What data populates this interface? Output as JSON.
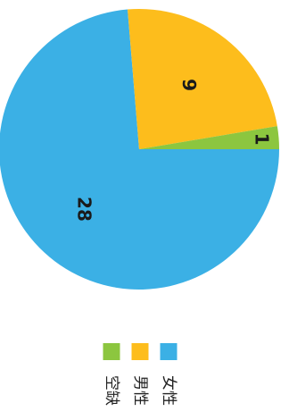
{
  "chart_data": {
    "type": "pie",
    "slices": [
      {
        "label": "女性",
        "value": 28,
        "color": "#3bb0e5"
      },
      {
        "label": "男性",
        "value": 9,
        "color": "#fdbd1c"
      },
      {
        "label": "空缺",
        "value": 1,
        "color": "#8cc63f"
      }
    ],
    "legend": "bottom"
  }
}
